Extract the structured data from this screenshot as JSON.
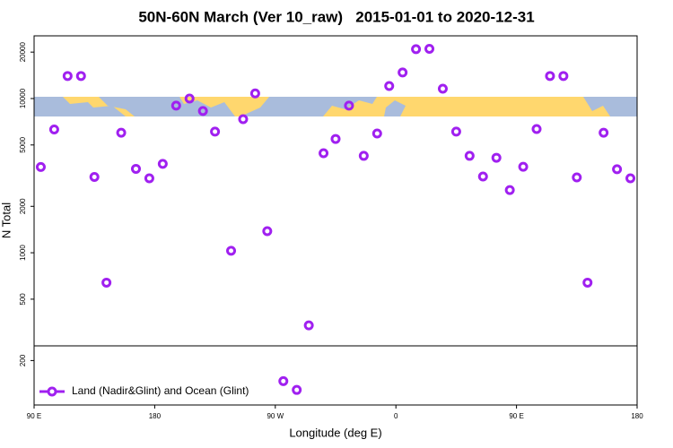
{
  "chart_data": {
    "type": "scatter",
    "title": "50N-60N March (Ver 10_raw)   2015-01-01 to 2020-12-31",
    "x_label": "Longitude (deg E)",
    "y_label": "N Total",
    "xlim": [
      90,
      540
    ],
    "ylim": [
      103,
      25500
    ],
    "y_log": true,
    "xticks": [
      {
        "value": 90,
        "label": "90 E"
      },
      180,
      {
        "value": 270,
        "label": "90 W"
      },
      {
        "value": 360,
        "label": "0"
      },
      {
        "value": 450,
        "label": "90 E"
      },
      {
        "value": 540,
        "label": "180"
      }
    ],
    "yticks": [
      200,
      500,
      1000,
      2000,
      5000,
      10000,
      20000
    ],
    "legend": "bottom-left",
    "series": [
      {
        "name": "Land (Nadir&Glint) and Ocean (Glint)",
        "color": "#a020f0",
        "x": [
          95,
          105,
          115,
          125,
          135,
          144,
          155,
          166,
          176,
          186,
          196,
          206,
          216,
          225,
          237,
          246,
          255,
          264,
          276,
          286,
          295,
          306,
          315,
          325,
          336,
          346,
          355,
          365,
          375,
          385,
          395,
          405,
          415,
          425,
          435,
          445,
          455,
          465,
          475,
          485,
          495,
          503,
          515,
          525,
          535
        ],
        "values": [
          3600,
          6300,
          14000,
          14000,
          3100,
          640,
          6000,
          3500,
          3040,
          3770,
          9000,
          10000,
          8300,
          6100,
          1030,
          7350,
          10800,
          1380,
          147,
          129,
          338,
          4420,
          5470,
          9000,
          4250,
          5930,
          12060,
          14750,
          20900,
          21000,
          11580,
          6100,
          4250,
          3120,
          4130,
          2550,
          3610,
          6340,
          14000,
          14000,
          3080,
          640,
          6000,
          3480,
          3040
        ]
      }
    ]
  }
}
